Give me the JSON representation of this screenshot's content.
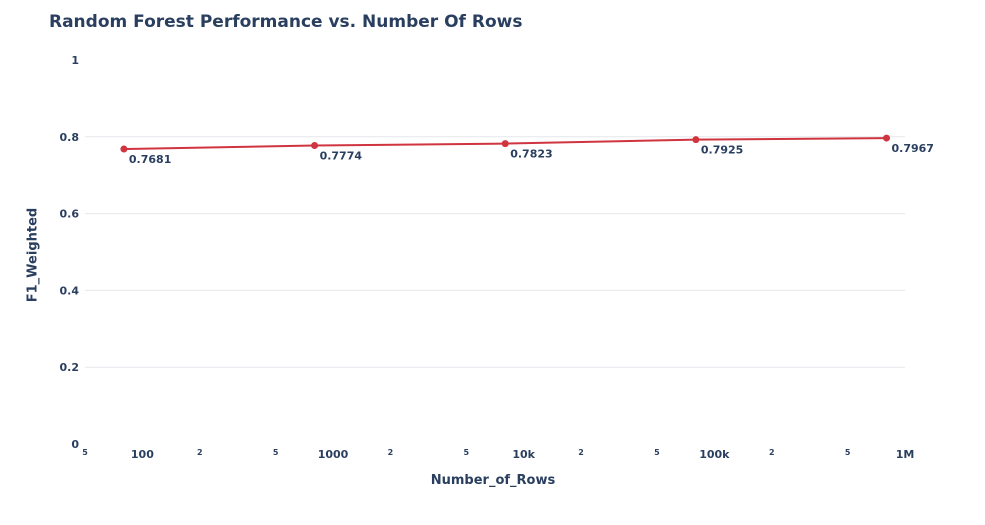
{
  "chart_data": {
    "type": "line",
    "title": "Random Forest Performance vs. Number Of Rows",
    "xlabel": "Number_of_Rows",
    "ylabel": "F1_Weighted",
    "x_scale": "log",
    "x_range": [
      50,
      1000000
    ],
    "ylim": [
      0,
      1
    ],
    "y_ticks": [
      0,
      0.2,
      0.4,
      0.6,
      0.8,
      1
    ],
    "y_tick_labels": [
      "0",
      "0.2",
      "0.4",
      "0.6",
      "0.8",
      "1"
    ],
    "x_major_ticks": [
      {
        "value": 100,
        "label": "100"
      },
      {
        "value": 1000,
        "label": "1000"
      },
      {
        "value": 10000,
        "label": "10k"
      },
      {
        "value": 100000,
        "label": "100k"
      },
      {
        "value": 1000000,
        "label": "1M"
      }
    ],
    "x_minor_ticks": [
      {
        "value": 50,
        "label": "5"
      },
      {
        "value": 200,
        "label": "2"
      },
      {
        "value": 500,
        "label": "5"
      },
      {
        "value": 2000,
        "label": "2"
      },
      {
        "value": 5000,
        "label": "5"
      },
      {
        "value": 20000,
        "label": "2"
      },
      {
        "value": 50000,
        "label": "5"
      },
      {
        "value": 200000,
        "label": "2"
      },
      {
        "value": 500000,
        "label": "5"
      }
    ],
    "grid": true,
    "series": [
      {
        "color": "#d0343f",
        "x": [
          80,
          800,
          8000,
          80000,
          800000
        ],
        "y": [
          0.7681,
          0.7774,
          0.7823,
          0.7925,
          0.7967
        ],
        "labels": [
          "0.7681",
          "0.7774",
          "0.7823",
          "0.7925",
          "0.7967"
        ]
      }
    ]
  }
}
